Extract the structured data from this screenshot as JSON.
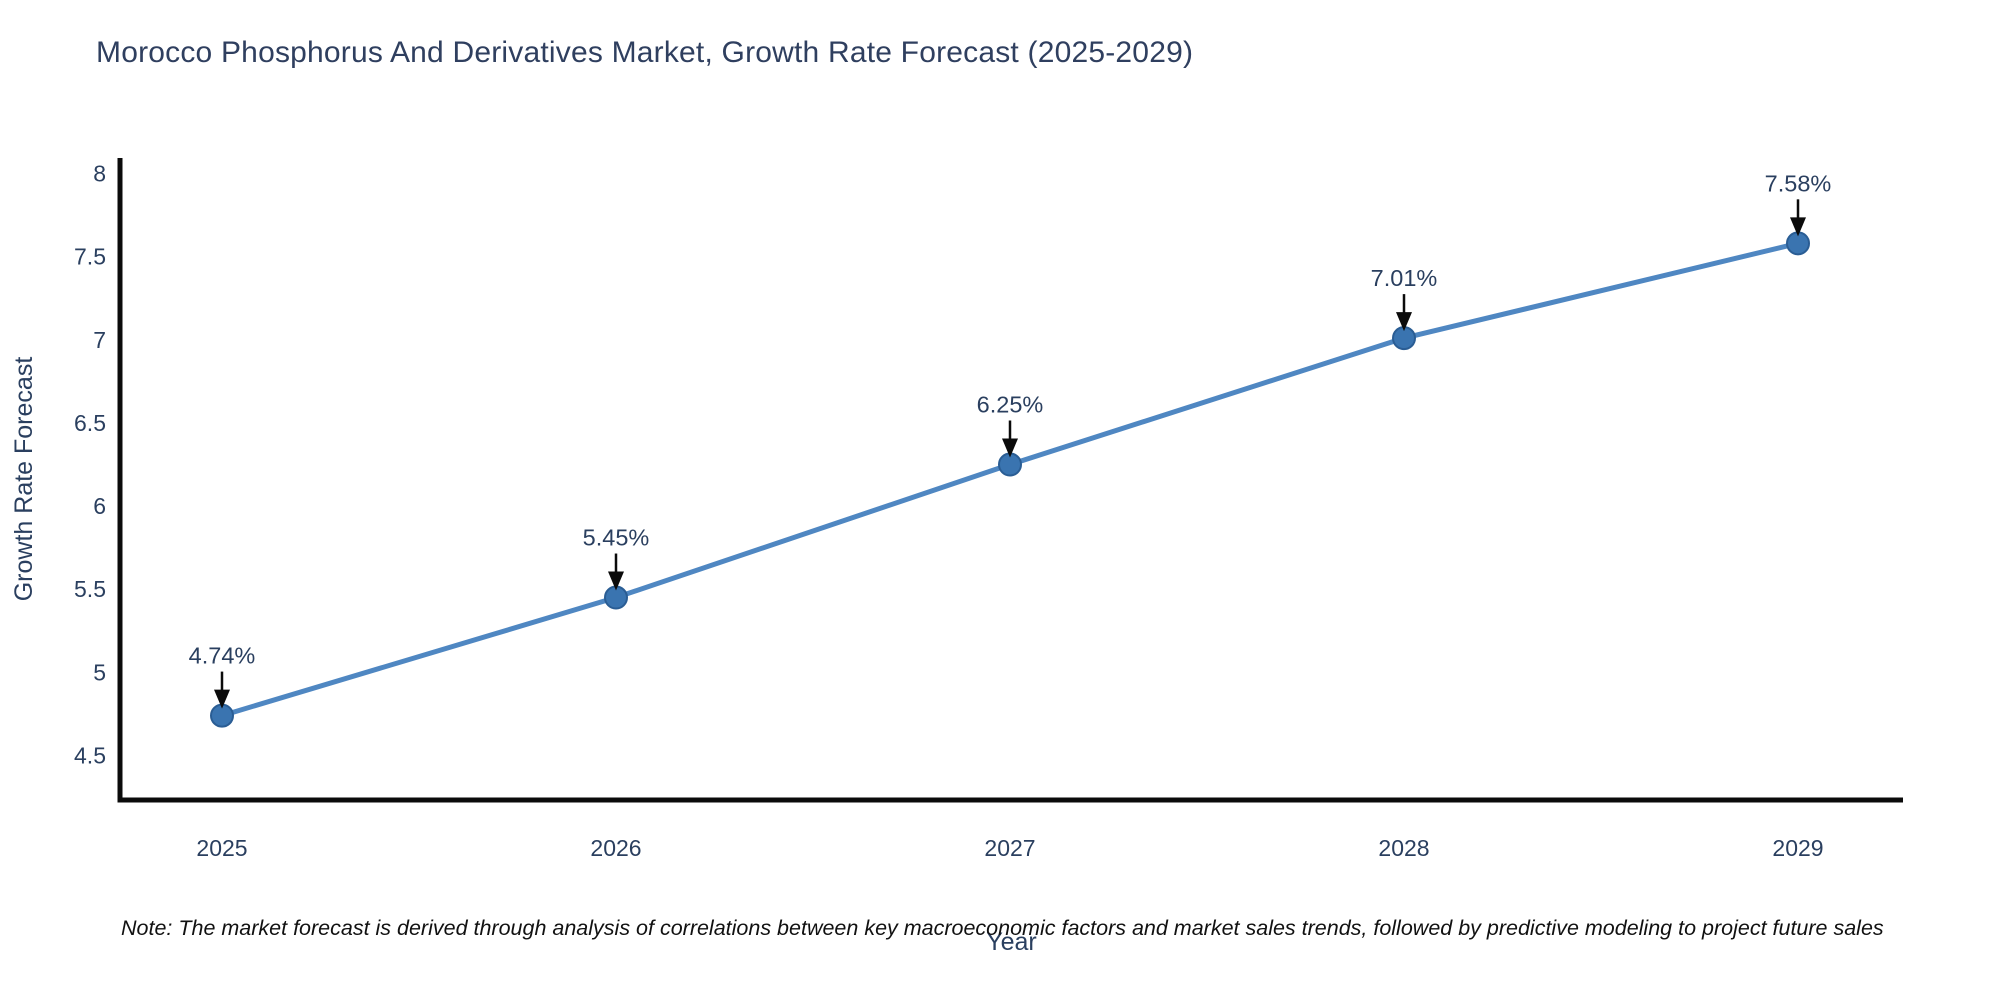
{
  "title": "Morocco Phosphorus And Derivatives Market, Growth Rate Forecast (2025-2029)",
  "note": "Note: The market forecast is derived through analysis of correlations between key macroeconomic factors and market sales trends, followed by predictive modeling to project future sales",
  "chart_data": {
    "type": "line",
    "x": [
      2025,
      2026,
      2027,
      2028,
      2029
    ],
    "values": [
      4.74,
      5.45,
      6.25,
      7.01,
      7.58
    ],
    "point_labels": [
      "4.74%",
      "5.45%",
      "6.25%",
      "7.01%",
      "7.58%"
    ],
    "title": "Morocco Phosphorus And Derivatives Market, Growth Rate Forecast (2025-2029)",
    "xlabel": "Year",
    "ylabel": "Growth Rate Forecast",
    "yticks": [
      4.5,
      5,
      5.5,
      6,
      6.5,
      7,
      7.5,
      8
    ],
    "ylim": [
      4.23,
      8.09
    ],
    "grid": false,
    "legend": "none",
    "annotation_style": "black-down-arrow",
    "colors": {
      "line": "#4f87c2",
      "marker": "#3a74b0",
      "marker_edge": "#2a5d94",
      "axis": "#0b0b0b",
      "tick_text": "#2a3f5f",
      "annotation_text": "#2a3f5f",
      "arrow": "#0b0b0b"
    }
  }
}
